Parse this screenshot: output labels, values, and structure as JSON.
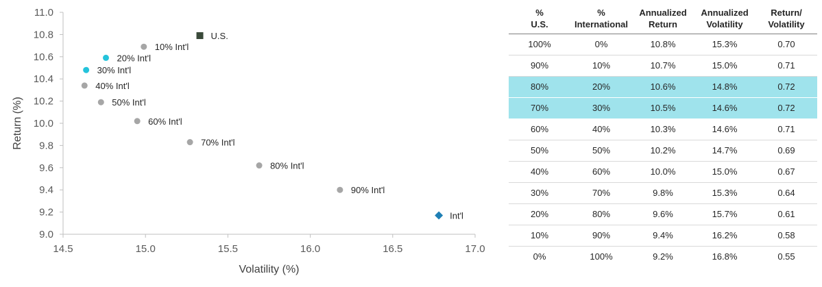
{
  "chart_data": {
    "type": "scatter",
    "xlabel": "Volatility (%)",
    "ylabel": "Return (%)",
    "xlim": [
      14.5,
      17.0
    ],
    "ylim": [
      9.0,
      11.0
    ],
    "xticks": [
      "14.5",
      "15.0",
      "15.5",
      "16.0",
      "16.5",
      "17.0"
    ],
    "yticks": [
      "9.0",
      "9.2",
      "9.4",
      "9.6",
      "9.8",
      "10.0",
      "10.2",
      "10.4",
      "10.6",
      "10.8",
      "11.0"
    ],
    "grid": false,
    "points": [
      {
        "label": "U.S.",
        "x": 15.33,
        "y": 10.79,
        "shape": "square",
        "color": "#3a4a3a"
      },
      {
        "label": "10% Int'l",
        "x": 14.99,
        "y": 10.69,
        "shape": "circle",
        "color": "#a6a6a6"
      },
      {
        "label": "20% Int'l",
        "x": 14.76,
        "y": 10.59,
        "shape": "circle",
        "color": "#24c3db"
      },
      {
        "label": "30% Int'l",
        "x": 14.64,
        "y": 10.48,
        "shape": "circle",
        "color": "#24c3db"
      },
      {
        "label": "40% Int'l",
        "x": 14.63,
        "y": 10.34,
        "shape": "circle",
        "color": "#a6a6a6"
      },
      {
        "label": "50% Int'l",
        "x": 14.73,
        "y": 10.19,
        "shape": "circle",
        "color": "#a6a6a6"
      },
      {
        "label": "60% Int'l",
        "x": 14.95,
        "y": 10.02,
        "shape": "circle",
        "color": "#a6a6a6"
      },
      {
        "label": "70% Int'l",
        "x": 15.27,
        "y": 9.83,
        "shape": "circle",
        "color": "#a6a6a6"
      },
      {
        "label": "80% Int'l",
        "x": 15.69,
        "y": 9.62,
        "shape": "circle",
        "color": "#a6a6a6"
      },
      {
        "label": "90% Int'l",
        "x": 16.18,
        "y": 9.4,
        "shape": "circle",
        "color": "#a6a6a6"
      },
      {
        "label": "Int'l",
        "x": 16.78,
        "y": 9.17,
        "shape": "diamond",
        "color": "#1f7fb5"
      }
    ]
  },
  "table": {
    "headers": [
      [
        "%",
        "U.S."
      ],
      [
        "%",
        "International"
      ],
      [
        "Annualized",
        "Return"
      ],
      [
        "Annualized",
        "Volatility"
      ],
      [
        "Return/",
        "Volatility"
      ]
    ],
    "highlight_color": "#9fe3ec",
    "rows": [
      {
        "cells": [
          "100%",
          "0%",
          "10.8%",
          "15.3%",
          "0.70"
        ],
        "highlight": false
      },
      {
        "cells": [
          "90%",
          "10%",
          "10.7%",
          "15.0%",
          "0.71"
        ],
        "highlight": false
      },
      {
        "cells": [
          "80%",
          "20%",
          "10.6%",
          "14.8%",
          "0.72"
        ],
        "highlight": true
      },
      {
        "cells": [
          "70%",
          "30%",
          "10.5%",
          "14.6%",
          "0.72"
        ],
        "highlight": true
      },
      {
        "cells": [
          "60%",
          "40%",
          "10.3%",
          "14.6%",
          "0.71"
        ],
        "highlight": false
      },
      {
        "cells": [
          "50%",
          "50%",
          "10.2%",
          "14.7%",
          "0.69"
        ],
        "highlight": false
      },
      {
        "cells": [
          "40%",
          "60%",
          "10.0%",
          "15.0%",
          "0.67"
        ],
        "highlight": false
      },
      {
        "cells": [
          "30%",
          "70%",
          "9.8%",
          "15.3%",
          "0.64"
        ],
        "highlight": false
      },
      {
        "cells": [
          "20%",
          "80%",
          "9.6%",
          "15.7%",
          "0.61"
        ],
        "highlight": false
      },
      {
        "cells": [
          "10%",
          "90%",
          "9.4%",
          "16.2%",
          "0.58"
        ],
        "highlight": false
      },
      {
        "cells": [
          "0%",
          "100%",
          "9.2%",
          "16.8%",
          "0.55"
        ],
        "highlight": false
      }
    ]
  }
}
